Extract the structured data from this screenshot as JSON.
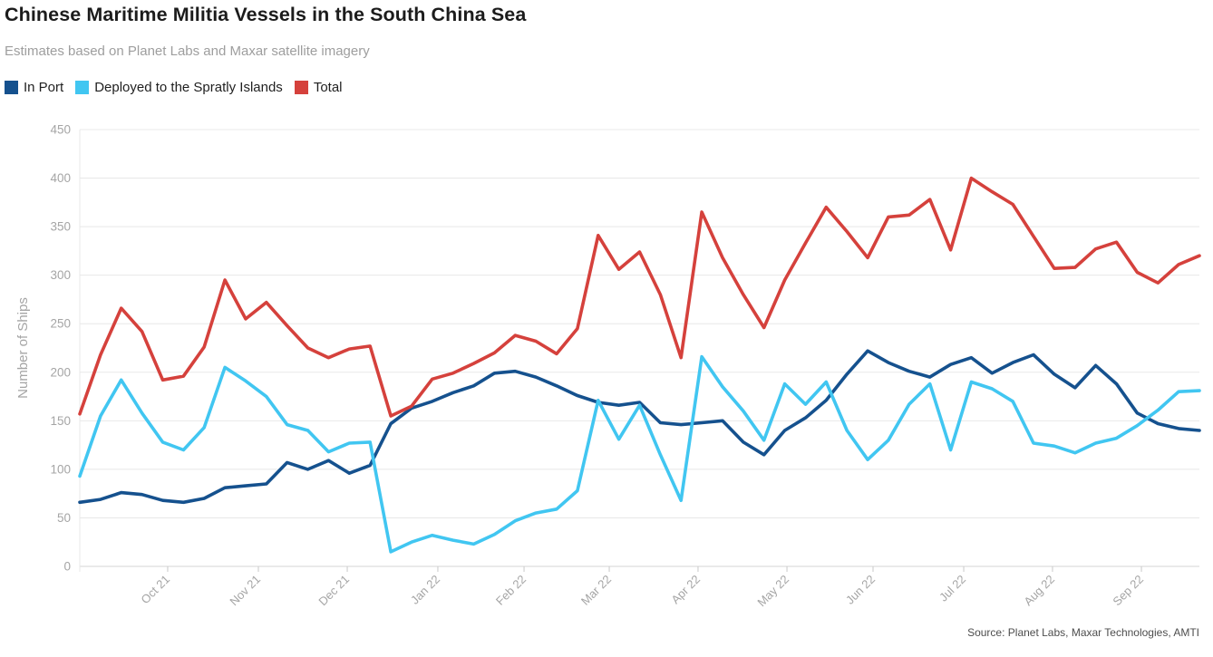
{
  "header": {
    "title": "Chinese Maritime Militia Vessels in the South China Sea",
    "subtitle": "Estimates based on Planet Labs and Maxar satellite imagery"
  },
  "legend": [
    {
      "label": "In Port",
      "color": "#15518e"
    },
    {
      "label": "Deployed to the Spratly Islands",
      "color": "#41c6f1"
    },
    {
      "label": "Total",
      "color": "#d5413c"
    }
  ],
  "source": "Source: Planet Labs, Maxar Technologies, AMTI",
  "colors": {
    "grid": "#e8e8e8",
    "baseline": "#d6d6d6",
    "tick": "#c9c9c9",
    "axis_text": "#a5a5a5"
  },
  "chart_data": {
    "type": "line",
    "title": "Chinese Maritime Militia Vessels in the South China Sea",
    "subtitle": "Estimates based on Planet Labs and Maxar satellite imagery",
    "xlabel": "",
    "ylabel": "Number of Ships",
    "ylim": [
      0,
      450
    ],
    "ytick_step": 50,
    "grid": true,
    "legend_position": "top-left",
    "x_unit": "weekly observations, Sep 2021 - Sep 2022",
    "x_ticks": [
      {
        "label": "Oct 21",
        "pos": 0.0785
      },
      {
        "label": "Nov 21",
        "pos": 0.1595
      },
      {
        "label": "Dec 21",
        "pos": 0.2389
      },
      {
        "label": "Jan 22",
        "pos": 0.3198
      },
      {
        "label": "Feb 22",
        "pos": 0.3968
      },
      {
        "label": "Mar 22",
        "pos": 0.4729
      },
      {
        "label": "Apr 22",
        "pos": 0.5522
      },
      {
        "label": "May 22",
        "pos": 0.6316
      },
      {
        "label": "Jun 22",
        "pos": 0.7085
      },
      {
        "label": "Jul 22",
        "pos": 0.7895
      },
      {
        "label": "Aug 22",
        "pos": 0.8688
      },
      {
        "label": "Sep 22",
        "pos": 0.9482
      }
    ],
    "series": [
      {
        "name": "In Port",
        "color": "#15518e",
        "z": 0,
        "values": [
          66,
          69,
          76,
          74,
          68,
          66,
          70,
          81,
          83,
          85,
          107,
          100,
          109,
          96,
          104,
          147,
          163,
          170,
          179,
          186,
          199,
          201,
          195,
          186,
          176,
          169,
          166,
          169,
          148,
          146,
          148,
          150,
          128,
          115,
          140,
          153,
          171,
          198,
          222,
          210,
          201,
          195,
          208,
          215,
          199,
          210,
          218,
          198,
          184,
          207,
          188,
          158,
          147,
          142,
          140
        ]
      },
      {
        "name": "Deployed to the Spratly Islands",
        "color": "#41c6f1",
        "z": 2,
        "values": [
          93,
          155,
          192,
          158,
          128,
          120,
          143,
          205,
          191,
          175,
          146,
          140,
          118,
          127,
          128,
          15,
          25,
          32,
          27,
          23,
          33,
          47,
          55,
          59,
          78,
          171,
          131,
          166,
          115,
          68,
          216,
          185,
          160,
          130,
          188,
          167,
          190,
          140,
          110,
          130,
          167,
          188,
          120,
          190,
          183,
          170,
          127,
          124,
          117,
          127,
          132,
          145,
          161,
          180,
          181
        ]
      },
      {
        "name": "Total",
        "color": "#d5413c",
        "z": 1,
        "values": [
          157,
          218,
          266,
          242,
          192,
          196,
          226,
          295,
          255,
          272,
          248,
          225,
          215,
          224,
          227,
          155,
          165,
          193,
          199,
          209,
          220,
          238,
          232,
          219,
          245,
          341,
          306,
          324,
          280,
          215,
          365,
          318,
          280,
          246,
          295,
          333,
          370,
          345,
          318,
          360,
          362,
          378,
          326,
          400,
          386,
          373,
          340,
          307,
          308,
          327,
          334,
          303,
          292,
          311,
          320
        ]
      }
    ]
  }
}
